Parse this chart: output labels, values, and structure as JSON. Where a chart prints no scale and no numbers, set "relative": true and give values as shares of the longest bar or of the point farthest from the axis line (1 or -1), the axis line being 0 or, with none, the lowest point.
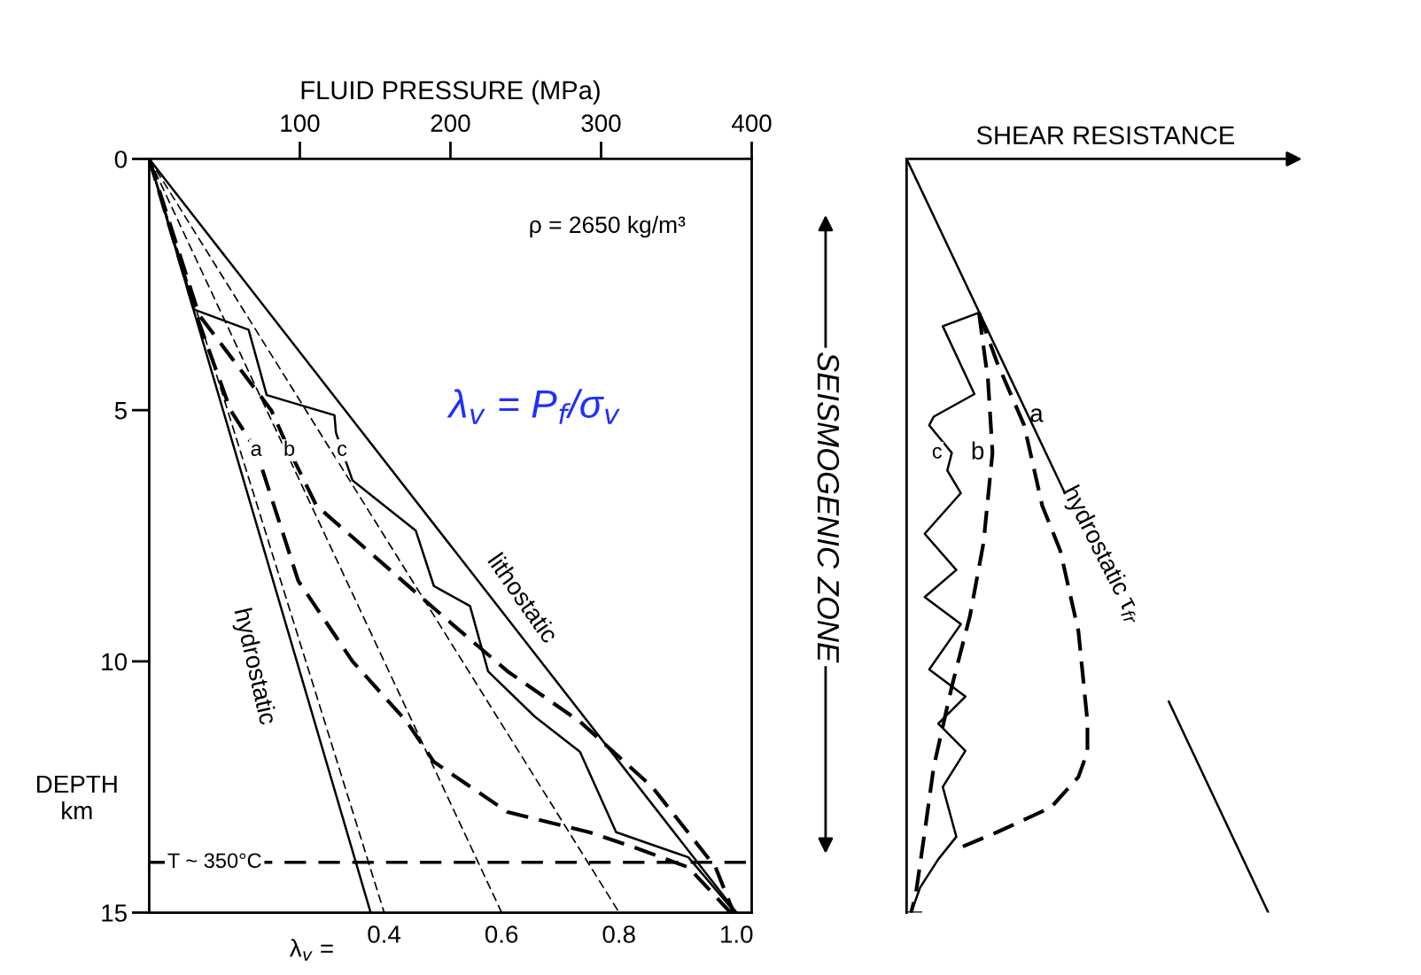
{
  "chart_data": [
    {
      "type": "line",
      "xlabel": "FLUID PRESSURE (MPa)",
      "ylabel": "DEPTH\nkm",
      "x2label": "λ$_{v}$ =",
      "xlim": [
        0,
        400
      ],
      "xticks": [
        100,
        200,
        300,
        400
      ],
      "ylim": [
        15,
        0
      ],
      "yticks": [
        0,
        5,
        10,
        15
      ],
      "x2lim": [
        0,
        1.026
      ],
      "x2ticks": [
        0.4,
        0.6,
        0.8,
        {
          "value": 1.0,
          "label": "1.0"
        }
      ],
      "series": [
        {
          "name": "hydrostatic",
          "color": "#000000",
          "line_style": "solid",
          "x": [
            0,
            147
          ],
          "values": [
            0,
            15
          ]
        },
        {
          "name": "lithostatic",
          "color": "#000000",
          "line_style": "solid",
          "x": [
            0,
            390
          ],
          "values": [
            0,
            15
          ]
        },
        {
          "color": "#000000",
          "line_style": "dashed",
          "x": [
            0,
            156
          ],
          "values": [
            0,
            15
          ]
        },
        {
          "color": "#000000",
          "line_style": "dashed",
          "x": [
            0,
            234
          ],
          "values": [
            0,
            15
          ]
        },
        {
          "color": "#000000",
          "line_style": "dashed",
          "x": [
            0,
            312
          ],
          "values": [
            0,
            15
          ]
        },
        {
          "name": "a",
          "color": "#000000",
          "line_style": "dashed",
          "x": [
            0,
            30,
            54,
            71,
            99,
            135,
            171,
            189,
            238,
            292,
            322,
            358,
            386
          ],
          "values": [
            0,
            3.0,
            5.0,
            5.8,
            8.4,
            10.0,
            11.2,
            12.0,
            13.0,
            13.4,
            13.7,
            14.1,
            15
          ]
        },
        {
          "name": "b",
          "color": "#000000",
          "line_style": "dashed",
          "x": [
            0,
            33,
            81,
            93,
            111,
            153,
            195,
            238,
            286,
            334,
            376,
            388
          ],
          "values": [
            0,
            3.1,
            5.0,
            5.8,
            6.9,
            8.0,
            9.1,
            10.2,
            11.2,
            12.5,
            14.1,
            15
          ]
        },
        {
          "name": "c",
          "color": "#000000",
          "line_style": "solid",
          "x": [
            0,
            30,
            66,
            78,
            123,
            124,
            128,
            135,
            177,
            189,
            213,
            225,
            256,
            286,
            310,
            358,
            389
          ],
          "values": [
            0,
            3.0,
            3.4,
            4.7,
            5.1,
            5.45,
            5.8,
            6.4,
            7.4,
            8.5,
            8.9,
            10.2,
            11.1,
            11.8,
            13.4,
            13.9,
            15
          ]
        }
      ],
      "ref_lines": [
        {
          "axis": "y",
          "value": 14.0,
          "label": "T ~ 350°C",
          "line_style": "dashed",
          "color": "#000000"
        }
      ],
      "annotations": [
        "ρ = 2650 kg/m³",
        "λ$_{v}$ = P$_{f}$/σ$_{v}$",
        "SEISMOGENIC ZONE"
      ]
    },
    {
      "type": "line",
      "xlabel": "SHEAR RESISTANCE",
      "relative": true,
      "orientation": "horizontal",
      "ylim": [
        15,
        0
      ],
      "series": [
        {
          "name": "hydrostatic τ$_{fr}$",
          "color": "#000000",
          "line_style": "solid",
          "values": [
            0,
            0.4375,
            null,
            0.725,
            1
          ],
          "x": [
            0,
            6.65,
            null,
            10.8,
            15
          ]
        },
        {
          "name": "a",
          "color": "#000000",
          "line_style": "dashed",
          "values": [
            0.2,
            0.25,
            0.325,
            0.375,
            0.425,
            0.475,
            0.5,
            0.5,
            0.475,
            0.4,
            0.25,
            0.15
          ],
          "x": [
            3.06,
            4.05,
            5.3,
            6.9,
            7.8,
            9.4,
            11.2,
            11.8,
            12.3,
            12.9,
            13.4,
            13.7
          ]
        },
        {
          "name": "b",
          "color": "#000000",
          "line_style": "dashed",
          "values": [
            0.2,
            0.225,
            0.2375,
            0.2125,
            0.175,
            0.125,
            0.075,
            0.05,
            0.025,
            0.0125
          ],
          "x": [
            3.06,
            4.4,
            5.85,
            7.65,
            9.1,
            10.5,
            12.1,
            13.4,
            14.65,
            15
          ]
        },
        {
          "name": "c",
          "color": "#000000",
          "line_style": "solid",
          "values": [
            0.2,
            0.1,
            0.1875,
            0.075,
            0.0625,
            0.125,
            0.1125,
            0.15,
            0.05,
            0.1375,
            0.05,
            0.15,
            0.0625,
            0.1625,
            0.0875,
            0.1625,
            0.1,
            0.1375,
            0.0875,
            0.0375,
            0.0125
          ],
          "x": [
            3.06,
            3.33,
            4.68,
            5.13,
            5.3,
            5.85,
            6.2,
            6.65,
            7.46,
            8.18,
            8.72,
            9.26,
            10.16,
            10.7,
            11.24,
            11.78,
            12.5,
            13.49,
            13.94,
            14.5,
            15
          ]
        }
      ]
    }
  ]
}
